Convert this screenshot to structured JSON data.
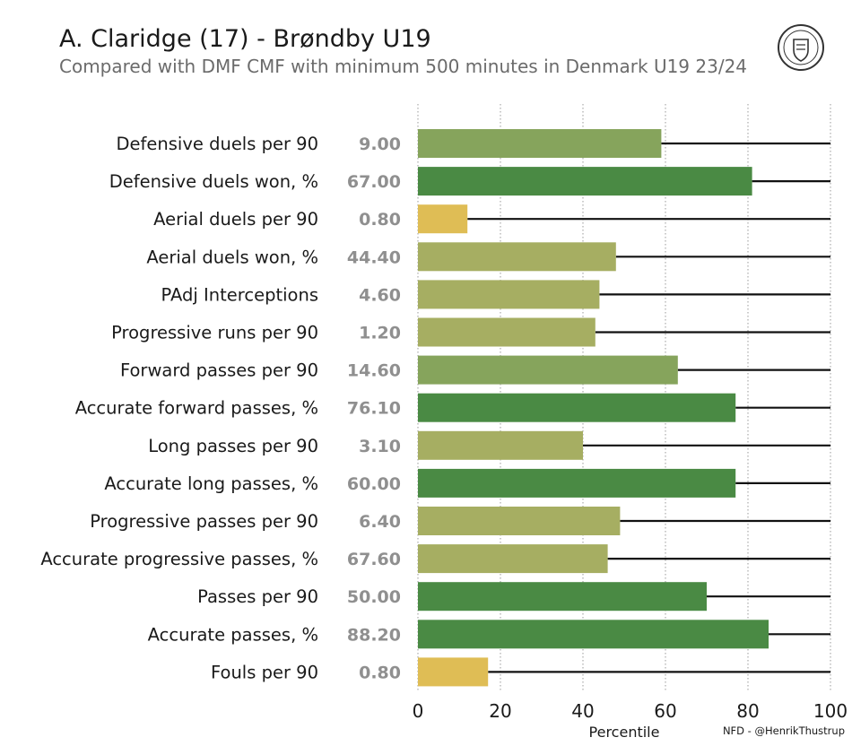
{
  "header": {
    "title": "A. Claridge (17) - Brøndby U19",
    "subtitle": "Compared with DMF CMF with minimum 500 minutes in Denmark U19 23/24",
    "logo_icon": "nordic-football-crest-icon"
  },
  "footer": {
    "credit": "NFD - @HenrikThustrup"
  },
  "chart_data": {
    "type": "bar",
    "orientation": "horizontal",
    "xlabel": "Percentile",
    "xlim": [
      0,
      100
    ],
    "xticks": [
      0,
      20,
      40,
      60,
      80,
      100
    ],
    "grid": "vertical dotted",
    "categories": [
      "Defensive duels per 90",
      "Defensive duels won, %",
      "Aerial duels per 90",
      "Aerial duels won, %",
      "PAdj Interceptions",
      "Progressive runs per 90",
      "Forward passes per 90",
      "Accurate forward passes, %",
      "Long passes per 90",
      "Accurate long passes, %",
      "Progressive passes per 90",
      "Accurate progressive passes, %",
      "Passes per 90",
      "Accurate passes, %",
      "Fouls per 90"
    ],
    "raw_values": [
      "9.00",
      "67.00",
      "0.80",
      "44.40",
      "4.60",
      "1.20",
      "14.60",
      "76.10",
      "3.10",
      "60.00",
      "6.40",
      "67.60",
      "50.00",
      "88.20",
      "0.80"
    ],
    "percentiles": [
      59,
      81,
      12,
      48,
      44,
      43,
      63,
      77,
      40,
      77,
      49,
      46,
      70,
      85,
      17
    ],
    "colors": {
      "low": "#dfbd55",
      "mid": "#a6ae62",
      "high": "#4a8a44"
    }
  }
}
